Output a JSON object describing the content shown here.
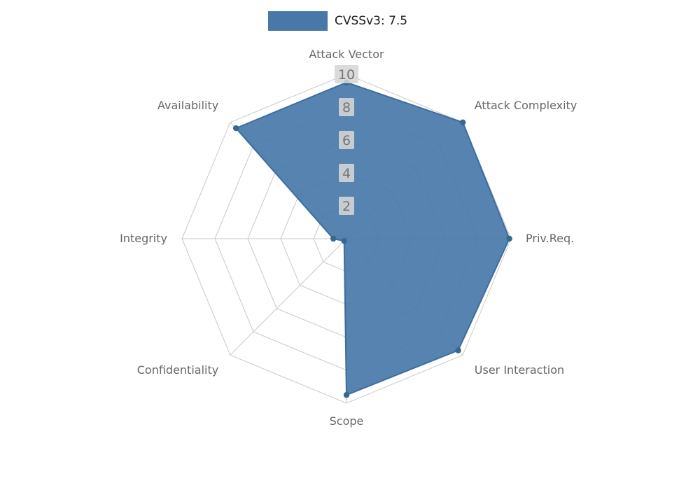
{
  "legend": {
    "label": "CVSSv3: 7.5",
    "swatch_color": "#4878a8"
  },
  "chart_data": {
    "type": "radar",
    "title": "CVSSv3: 7.5",
    "categories": [
      "Attack Vector",
      "Attack Complexity",
      "Priv.Req.",
      "User Interaction",
      "Scope",
      "Confidentiality",
      "Integrity",
      "Availability"
    ],
    "series": [
      {
        "name": "CVSSv3: 7.5",
        "values": [
          9.5,
          10,
          9.9,
          9.6,
          9.5,
          0.2,
          0.8,
          9.5
        ]
      }
    ],
    "ticks": [
      2,
      4,
      6,
      8,
      10
    ],
    "rmax": 10,
    "grid": true,
    "legend_position": "top-center",
    "colors": {
      "fill": "#4878a8",
      "fill_opacity": 0.92,
      "line": "#3d6d9c",
      "marker": "#38678f",
      "grid_line": "#c9c9c9",
      "tick_label": "#757575",
      "tick_label_bg": "#d6d6d6",
      "axis_label": "#666666",
      "background": "#ffffff"
    }
  }
}
